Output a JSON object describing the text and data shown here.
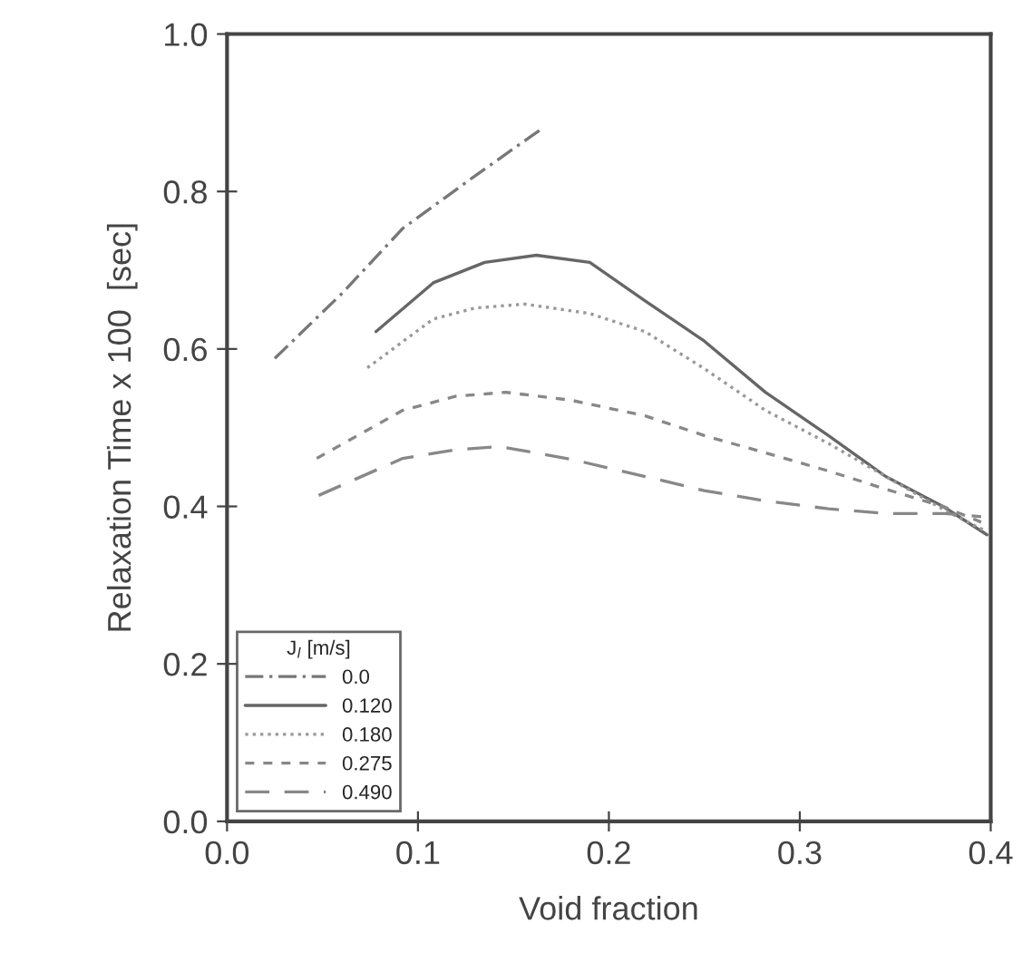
{
  "chart_data": {
    "type": "line",
    "xlabel": "Void fraction",
    "ylabel": "Relaxation Time x 100  [sec]",
    "legend_title": "J$_{l}$ [m/s]",
    "legend": "bottom left",
    "grid": false,
    "xlim": [
      0.0,
      0.4
    ],
    "ylim": [
      0.0,
      1.0
    ],
    "xticks": [
      {
        "value": 0.0,
        "label": "0.0"
      },
      {
        "value": 0.1,
        "label": "0.1"
      },
      {
        "value": 0.2,
        "label": "0.2"
      },
      {
        "value": 0.3,
        "label": "0.3"
      },
      {
        "value": 0.4,
        "label": "0.4"
      }
    ],
    "yticks": [
      {
        "value": 0.0,
        "label": "0.0"
      },
      {
        "value": 0.2,
        "label": "0.2"
      },
      {
        "value": 0.4,
        "label": "0.4"
      },
      {
        "value": 0.6,
        "label": "0.6"
      },
      {
        "value": 0.8,
        "label": "0.8"
      },
      {
        "value": 1.0,
        "label": "1.0"
      }
    ],
    "series": [
      {
        "name": "0.0",
        "color": "#777777",
        "line_style": "dashdot",
        "x": [
          0.025,
          0.06,
          0.092,
          0.13,
          0.165
        ],
        "values": [
          0.588,
          0.67,
          0.753,
          0.82,
          0.88
        ]
      },
      {
        "name": "0.120",
        "color": "#666666",
        "line_style": "solid",
        "x": [
          0.078,
          0.108,
          0.135,
          0.162,
          0.19,
          0.219,
          0.25,
          0.282,
          0.315,
          0.345,
          0.375,
          0.398
        ],
        "values": [
          0.622,
          0.684,
          0.71,
          0.719,
          0.71,
          0.661,
          0.61,
          0.545,
          0.49,
          0.438,
          0.4,
          0.364
        ]
      },
      {
        "name": "0.180",
        "color": "#999999",
        "line_style": "dotted",
        "x": [
          0.0735,
          0.108,
          0.13,
          0.156,
          0.19,
          0.219,
          0.25,
          0.282,
          0.315,
          0.345,
          0.376,
          0.398
        ],
        "values": [
          0.576,
          0.638,
          0.652,
          0.657,
          0.645,
          0.622,
          0.575,
          0.522,
          0.48,
          0.438,
          0.395,
          0.368
        ]
      },
      {
        "name": "0.275",
        "color": "#888888",
        "line_style": "dashed",
        "x": [
          0.047,
          0.092,
          0.12,
          0.146,
          0.18,
          0.219,
          0.25,
          0.282,
          0.315,
          0.345,
          0.376,
          0.395
        ],
        "values": [
          0.461,
          0.522,
          0.54,
          0.545,
          0.535,
          0.515,
          0.49,
          0.468,
          0.445,
          0.422,
          0.399,
          0.38
        ]
      },
      {
        "name": "0.490",
        "color": "#888888",
        "line_style": "longdash",
        "x": [
          0.048,
          0.092,
          0.12,
          0.143,
          0.18,
          0.219,
          0.25,
          0.282,
          0.315,
          0.345,
          0.376,
          0.395
        ],
        "values": [
          0.414,
          0.461,
          0.472,
          0.476,
          0.46,
          0.438,
          0.42,
          0.407,
          0.397,
          0.391,
          0.391,
          0.387
        ]
      }
    ]
  }
}
